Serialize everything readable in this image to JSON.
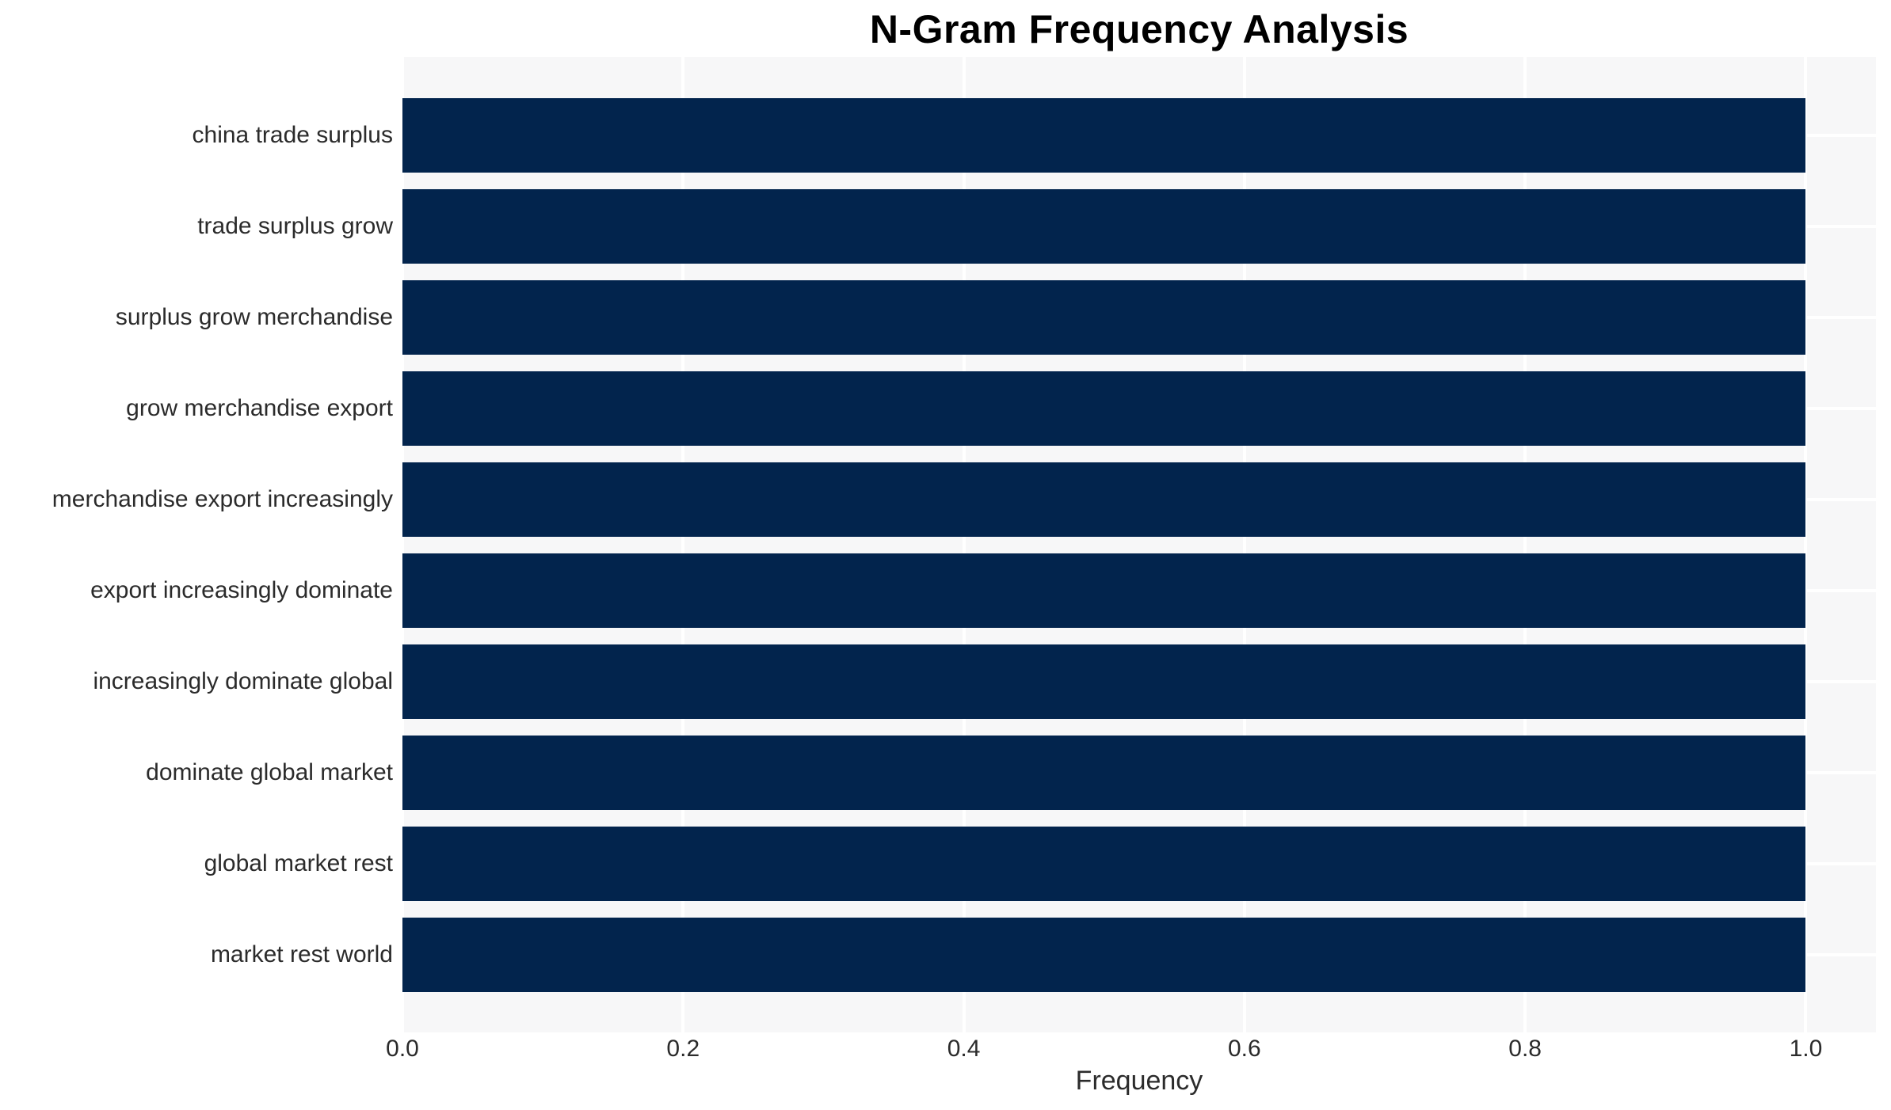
{
  "chart_data": {
    "type": "bar",
    "orientation": "horizontal",
    "title": "N-Gram Frequency Analysis",
    "xlabel": "Frequency",
    "ylabel": "",
    "categories": [
      "china trade surplus",
      "trade surplus grow",
      "surplus grow merchandise",
      "grow merchandise export",
      "merchandise export increasingly",
      "export increasingly dominate",
      "increasingly dominate global",
      "dominate global market",
      "global market rest",
      "market rest world"
    ],
    "values": [
      1.0,
      1.0,
      1.0,
      1.0,
      1.0,
      1.0,
      1.0,
      1.0,
      1.0,
      1.0
    ],
    "xlim": [
      0.0,
      1.05
    ],
    "xticks": [
      0.0,
      0.2,
      0.4,
      0.6,
      0.8,
      1.0
    ],
    "xtick_labels": [
      "0.0",
      "0.2",
      "0.4",
      "0.6",
      "0.8",
      "1.0"
    ],
    "grid": true,
    "legend": false,
    "colors": {
      "bar": "#02244d",
      "plot_background": "#f7f7f8",
      "gridline": "#ffffff",
      "axis_text": "#2b2b2b",
      "title_text": "#000000"
    }
  }
}
